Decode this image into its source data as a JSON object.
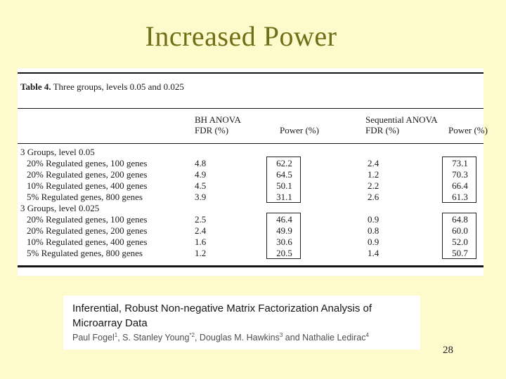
{
  "slide": {
    "title": "Increased Power",
    "page_number": "28"
  },
  "colors": {
    "slide_background": "#FDFACB",
    "title_text": "#6F6F17",
    "panel_background": "#FFFFFF",
    "table_text": "#1A1A1A",
    "authors_text": "#4D4D4D"
  },
  "table": {
    "caption": {
      "label": "Table 4.",
      "text": " Three groups, levels 0.05 and 0.025"
    },
    "headers": {
      "bh_anova_line1": "BH ANOVA",
      "bh_anova_line2": "FDR (%)",
      "bh_power": "Power (%)",
      "seq_anova_line1": "Sequential ANOVA",
      "seq_anova_line2": "FDR (%)",
      "seq_power": "Power (%)"
    },
    "sections": [
      {
        "group_label": "3 Groups, level 0.05",
        "rows": [
          {
            "label": "20% Regulated genes, 100 genes",
            "bh_fdr": "4.8",
            "bh_power": "62.2",
            "seq_fdr": "2.4",
            "seq_power": "73.1"
          },
          {
            "label": "20% Regulated genes, 200 genes",
            "bh_fdr": "4.9",
            "bh_power": "64.5",
            "seq_fdr": "1.2",
            "seq_power": "70.3"
          },
          {
            "label": "10% Regulated genes, 400 genes",
            "bh_fdr": "4.5",
            "bh_power": "50.1",
            "seq_fdr": "2.2",
            "seq_power": "66.4"
          },
          {
            "label": "5% Regulated genes, 800 genes",
            "bh_fdr": "3.9",
            "bh_power": "31.1",
            "seq_fdr": "2.6",
            "seq_power": "61.3"
          }
        ]
      },
      {
        "group_label": "3 Groups, level 0.025",
        "rows": [
          {
            "label": "20% Regulated genes, 100 genes",
            "bh_fdr": "2.5",
            "bh_power": "46.4",
            "seq_fdr": "0.9",
            "seq_power": "64.8"
          },
          {
            "label": "20% Regulated genes, 200 genes",
            "bh_fdr": "2.4",
            "bh_power": "49.9",
            "seq_fdr": "0.8",
            "seq_power": "60.0"
          },
          {
            "label": "10% Regulated genes, 400 genes",
            "bh_fdr": "1.6",
            "bh_power": "30.6",
            "seq_fdr": "0.9",
            "seq_power": "52.0"
          },
          {
            "label": "5% Regulated genes, 800 genes",
            "bh_fdr": "1.2",
            "bh_power": "20.5",
            "seq_fdr": "1.4",
            "seq_power": "50.7"
          }
        ]
      }
    ]
  },
  "citation": {
    "title_line1": "Inferential, Robust Non-negative Matrix Factorization Analysis of",
    "title_line2": "Microarray Data",
    "authors": [
      {
        "name": "Paul Fogel",
        "sup": "1",
        "sep": ", "
      },
      {
        "name": "S. Stanley Young",
        "sup": "*2",
        "sep": ", "
      },
      {
        "name": "Douglas M. Hawkins",
        "sup": "3",
        "sep": " and "
      },
      {
        "name": "Nathalie Ledirac",
        "sup": "4",
        "sep": ""
      }
    ]
  }
}
